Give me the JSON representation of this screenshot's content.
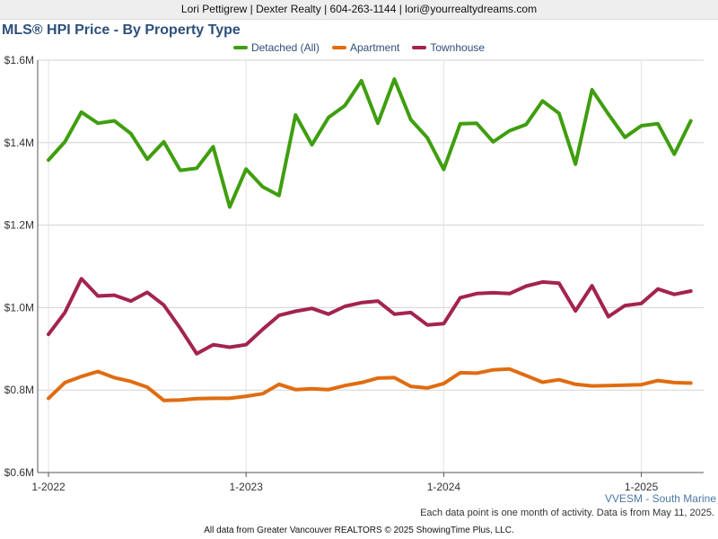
{
  "banner": "Lori Pettigrew | Dexter Realty | 604-263-1144 | lori@yourrealtydreams.com",
  "region": "VVESM - South Marine",
  "footnote": "Each data point is one month of activity. Data is from May 11, 2025.",
  "credit": "All data from Greater Vancouver REALTORS © 2025 ShowingTime Plus, LLC.",
  "chart_data": {
    "type": "line",
    "title": "MLS® HPI Price - By Property Type",
    "xlabel": "",
    "ylabel": "",
    "x_ticks": [
      "1-2022",
      "1-2023",
      "1-2024",
      "1-2025"
    ],
    "y_ticks": [
      "$0.6M",
      "$0.8M",
      "$1.0M",
      "$1.2M",
      "$1.4M",
      "$1.6M"
    ],
    "y_tick_values": [
      0.6,
      0.8,
      1.0,
      1.2,
      1.4,
      1.6
    ],
    "ylim": [
      0.6,
      1.6
    ],
    "x_start": "2022-01",
    "grid": true,
    "legend_position": "top-center",
    "series": [
      {
        "name": "Detached (All)",
        "color": "#3f9e0f",
        "values": [
          1.358,
          1.402,
          1.474,
          1.447,
          1.453,
          1.422,
          1.36,
          1.402,
          1.333,
          1.338,
          1.39,
          1.244,
          1.336,
          1.293,
          1.272,
          1.467,
          1.395,
          1.461,
          1.49,
          1.55,
          1.447,
          1.554,
          1.456,
          1.412,
          1.335,
          1.446,
          1.447,
          1.402,
          1.429,
          1.444,
          1.501,
          1.471,
          1.348,
          1.528,
          1.469,
          1.413,
          1.441,
          1.446,
          1.372,
          1.453
        ]
      },
      {
        "name": "Apartment",
        "color": "#e06c10",
        "values": [
          0.78,
          0.818,
          0.833,
          0.845,
          0.83,
          0.821,
          0.807,
          0.775,
          0.776,
          0.779,
          0.78,
          0.78,
          0.785,
          0.791,
          0.814,
          0.801,
          0.803,
          0.801,
          0.811,
          0.818,
          0.829,
          0.83,
          0.809,
          0.805,
          0.816,
          0.842,
          0.841,
          0.849,
          0.851,
          0.835,
          0.819,
          0.825,
          0.814,
          0.81,
          0.811,
          0.812,
          0.813,
          0.823,
          0.818,
          0.817
        ]
      },
      {
        "name": "Townhouse",
        "color": "#a3234f",
        "values": [
          0.935,
          0.988,
          1.07,
          1.028,
          1.03,
          1.016,
          1.037,
          1.006,
          0.95,
          0.888,
          0.91,
          0.904,
          0.91,
          0.947,
          0.981,
          0.991,
          0.998,
          0.984,
          1.003,
          1.012,
          1.016,
          0.984,
          0.988,
          0.958,
          0.961,
          1.024,
          1.034,
          1.036,
          1.034,
          1.052,
          1.062,
          1.059,
          0.992,
          1.053,
          0.978,
          1.005,
          1.01,
          1.045,
          1.032,
          1.04
        ]
      }
    ]
  }
}
